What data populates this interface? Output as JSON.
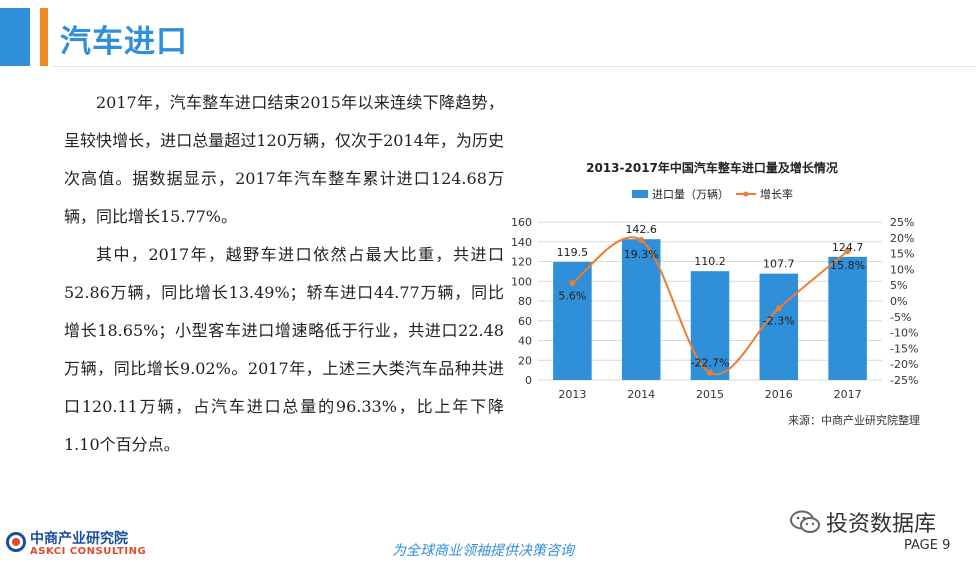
{
  "header": {
    "title": "汽车进口"
  },
  "body": {
    "paragraph1": "2017年，汽车整车进口结束2015年以来连续下降趋势，呈较快增长，进口总量超过120万辆，仅次于2014年，为历史次高值。据数据显示，2017年汽车整车累计进口124.68万辆，同比增长15.77%。",
    "paragraph2": "其中，2017年，越野车进口依然占最大比重，共进口52.86万辆，同比增长13.49%；轿车进口44.77万辆，同比增长18.65%；小型客车进口增速略低于行业，共进口22.48万辆，同比增长9.02%。2017年，上述三大类汽车品种共进口120.11万辆，占汽车进口总量的96.33%，比上年下降1.10个百分点。"
  },
  "chart_data": {
    "type": "bar+line",
    "title": "2013-2017年中国汽车整车进口量及增长情况",
    "source": "来源：中商产业研究院整理",
    "categories": [
      "2013",
      "2014",
      "2015",
      "2016",
      "2017"
    ],
    "series": [
      {
        "name": "进口量（万辆）",
        "type": "bar",
        "axis": "left",
        "color": "#2f8fd8",
        "values": [
          119.5,
          142.6,
          110.2,
          107.7,
          124.7
        ],
        "labels": [
          "119.5",
          "142.6",
          "110.2",
          "107.7",
          "124.7"
        ]
      },
      {
        "name": "增长率",
        "type": "line",
        "axis": "right",
        "color": "#ed7d31",
        "values": [
          5.6,
          19.3,
          -22.7,
          -2.3,
          15.8
        ],
        "labels": [
          "5.6%",
          "19.3%",
          "-22.7%",
          "-2.3%",
          "15.8%"
        ]
      }
    ],
    "y_left": {
      "ylim": [
        0,
        160
      ],
      "ticks": [
        "0",
        "20",
        "40",
        "60",
        "80",
        "100",
        "120",
        "140",
        "160"
      ]
    },
    "y_right": {
      "ylim": [
        -25,
        25
      ],
      "ticks": [
        "-25%",
        "-20%",
        "-15%",
        "-10%",
        "-5%",
        "0%",
        "5%",
        "10%",
        "15%",
        "20%",
        "25%"
      ]
    },
    "grid": true,
    "legend_position": "top"
  },
  "footer": {
    "logo_cn": "中商产业研究院",
    "logo_en": "ASKCI CONSULTING",
    "slogan": "为全球商业领袖提供决策咨询",
    "wechat_label": "投资数据库",
    "page": "PAGE 9"
  },
  "colors": {
    "accent_blue": "#2f8fd8",
    "accent_orange": "#f08a24",
    "line_orange": "#ed7d31"
  }
}
